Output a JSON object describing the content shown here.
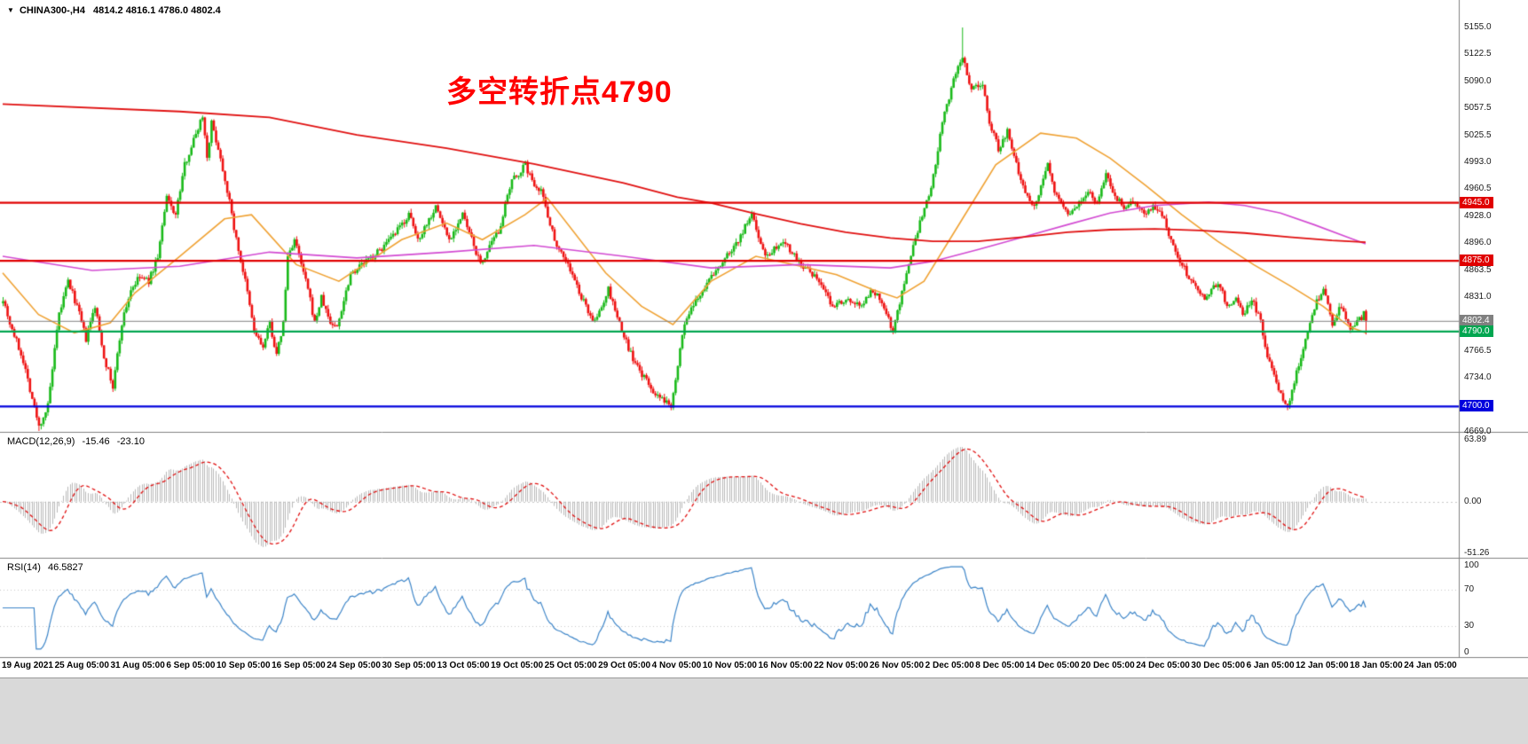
{
  "header": {
    "symbol": "CHINA300-,H4",
    "ohlc": "4814.2 4816.1 4786.0 4802.4"
  },
  "annotation": {
    "text": "多空转折点4790",
    "color": "#ff0000"
  },
  "indicators": {
    "macd": {
      "label": "MACD(12,26,9)",
      "value_main": "-15.46",
      "value_signal": "-23.10",
      "axis_labels": [
        "63.89",
        "0.00",
        "-51.26"
      ],
      "max": 63.89,
      "min": -51.26
    },
    "rsi": {
      "label": "RSI(14)",
      "value": "46.5827",
      "axis_labels": [
        "100",
        "70",
        "30",
        "0"
      ],
      "levels": [
        70,
        30
      ]
    }
  },
  "price_axis": {
    "ticks": [
      "5155.0",
      "5122.5",
      "5090.0",
      "5057.5",
      "5025.5",
      "4993.0",
      "4960.5",
      "4928.0",
      "4896.0",
      "4863.5",
      "4831.0",
      "4766.5",
      "4734.0",
      "4669.0"
    ],
    "levels": [
      {
        "label": "4945.0",
        "price": 4945.0,
        "color": "#e00000",
        "style": "solid",
        "role": "resistance"
      },
      {
        "label": "4875.0",
        "price": 4875.0,
        "color": "#e00000",
        "style": "solid",
        "role": "resistance"
      },
      {
        "label": "4802.4",
        "price": 4802.4,
        "color": "#808080",
        "style": "current",
        "role": "last-price"
      },
      {
        "label": "4790.0",
        "price": 4790.0,
        "color": "#00a650",
        "style": "solid",
        "role": "pivot"
      },
      {
        "label": "4700.0",
        "price": 4700.0,
        "color": "#0000dd",
        "style": "solid",
        "role": "support"
      }
    ]
  },
  "time_axis": {
    "labels": [
      "19 Aug 2021",
      "25 Aug 05:00",
      "31 Aug 05:00",
      "6 Sep 05:00",
      "10 Sep 05:00",
      "16 Sep 05:00",
      "24 Sep 05:00",
      "30 Sep 05:00",
      "13 Oct 05:00",
      "19 Oct 05:00",
      "25 Oct 05:00",
      "29 Oct 05:00",
      "4 Nov 05:00",
      "10 Nov 05:00",
      "16 Nov 05:00",
      "22 Nov 05:00",
      "26 Nov 05:00",
      "2 Dec 05:00",
      "8 Dec 05:00",
      "14 Dec 05:00",
      "20 Dec 05:00",
      "24 Dec 05:00",
      "30 Dec 05:00",
      "6 Jan 05:00",
      "12 Jan 05:00",
      "18 Jan 05:00",
      "24 Jan 05:00"
    ]
  },
  "colors": {
    "up": "#18b918",
    "down": "#ee1111",
    "ma_red": "#e01010",
    "ma_orange": "#efa132",
    "ma_magenta": "#d24ad2",
    "hist": "#b8b8b8",
    "signal": "#e01010",
    "rsi_line": "#3d85c8",
    "separator": "#808080",
    "grid_dot": "#c8c8c8"
  },
  "chart_data": {
    "type": "candlestick",
    "symbol": "CHINA300-",
    "timeframe": "H4",
    "title": "CHINA300-,H4",
    "annotation": "多空转折点4790",
    "visible_range": {
      "start": "19 Aug 2021",
      "end": "24 Jan 05:00"
    },
    "y_axis_range": [
      4669.0,
      5155.0
    ],
    "key_levels": {
      "resistance": [
        4945.0,
        4875.0
      ],
      "pivot": 4790.0,
      "support": 4700.0,
      "last_price": 4802.4
    },
    "ohlc_current": {
      "open": 4814.2,
      "high": 4816.1,
      "low": 4786.0,
      "close": 4802.4
    },
    "bar_count": 609,
    "price_anchors": [
      [
        0,
        4830
      ],
      [
        3,
        4800
      ],
      [
        9,
        4755
      ],
      [
        16,
        4675
      ],
      [
        20,
        4700
      ],
      [
        25,
        4810
      ],
      [
        29,
        4850
      ],
      [
        33,
        4820
      ],
      [
        37,
        4780
      ],
      [
        41,
        4820
      ],
      [
        45,
        4760
      ],
      [
        49,
        4722
      ],
      [
        53,
        4800
      ],
      [
        57,
        4840
      ],
      [
        61,
        4855
      ],
      [
        65,
        4850
      ],
      [
        69,
        4880
      ],
      [
        73,
        4950
      ],
      [
        77,
        4930
      ],
      [
        81,
        4990
      ],
      [
        85,
        5020
      ],
      [
        89,
        5050
      ],
      [
        91,
        5000
      ],
      [
        93,
        5040
      ],
      [
        96,
        5010
      ],
      [
        100,
        4960
      ],
      [
        104,
        4900
      ],
      [
        108,
        4850
      ],
      [
        112,
        4790
      ],
      [
        116,
        4770
      ],
      [
        119,
        4800
      ],
      [
        122,
        4760
      ],
      [
        125,
        4800
      ],
      [
        127,
        4880
      ],
      [
        130,
        4900
      ],
      [
        133,
        4870
      ],
      [
        136,
        4840
      ],
      [
        139,
        4800
      ],
      [
        142,
        4830
      ],
      [
        146,
        4800
      ],
      [
        149,
        4795
      ],
      [
        155,
        4860
      ],
      [
        165,
        4880
      ],
      [
        173,
        4900
      ],
      [
        181,
        4930
      ],
      [
        185,
        4900
      ],
      [
        193,
        4940
      ],
      [
        199,
        4900
      ],
      [
        205,
        4930
      ],
      [
        213,
        4870
      ],
      [
        221,
        4910
      ],
      [
        227,
        4970
      ],
      [
        233,
        4990
      ],
      [
        236,
        4970
      ],
      [
        240,
        4960
      ],
      [
        246,
        4900
      ],
      [
        252,
        4870
      ],
      [
        258,
        4830
      ],
      [
        264,
        4800
      ],
      [
        270,
        4840
      ],
      [
        276,
        4790
      ],
      [
        282,
        4750
      ],
      [
        292,
        4710
      ],
      [
        298,
        4702
      ],
      [
        304,
        4800
      ],
      [
        312,
        4840
      ],
      [
        320,
        4870
      ],
      [
        328,
        4900
      ],
      [
        334,
        4930
      ],
      [
        340,
        4880
      ],
      [
        348,
        4900
      ],
      [
        356,
        4870
      ],
      [
        364,
        4850
      ],
      [
        370,
        4820
      ],
      [
        376,
        4830
      ],
      [
        382,
        4820
      ],
      [
        388,
        4840
      ],
      [
        393,
        4820
      ],
      [
        397,
        4790
      ],
      [
        403,
        4860
      ],
      [
        409,
        4920
      ],
      [
        414,
        4960
      ],
      [
        419,
        5040
      ],
      [
        424,
        5090
      ],
      [
        428,
        5120
      ],
      [
        432,
        5080
      ],
      [
        437,
        5090
      ],
      [
        440,
        5040
      ],
      [
        444,
        5010
      ],
      [
        448,
        5030
      ],
      [
        452,
        4990
      ],
      [
        456,
        4960
      ],
      [
        460,
        4940
      ],
      [
        466,
        4990
      ],
      [
        470,
        4950
      ],
      [
        476,
        4930
      ],
      [
        480,
        4945
      ],
      [
        484,
        4960
      ],
      [
        488,
        4940
      ],
      [
        492,
        4980
      ],
      [
        496,
        4950
      ],
      [
        500,
        4940
      ],
      [
        504,
        4945
      ],
      [
        510,
        4930
      ],
      [
        513,
        4940
      ],
      [
        517,
        4930
      ],
      [
        521,
        4900
      ],
      [
        526,
        4870
      ],
      [
        530,
        4850
      ],
      [
        536,
        4830
      ],
      [
        542,
        4850
      ],
      [
        546,
        4820
      ],
      [
        550,
        4830
      ],
      [
        553,
        4810
      ],
      [
        557,
        4830
      ],
      [
        561,
        4800
      ],
      [
        565,
        4750
      ],
      [
        569,
        4720
      ],
      [
        573,
        4700
      ],
      [
        577,
        4740
      ],
      [
        581,
        4780
      ],
      [
        585,
        4820
      ],
      [
        589,
        4840
      ],
      [
        593,
        4800
      ],
      [
        597,
        4820
      ],
      [
        601,
        4790
      ],
      [
        604,
        4800
      ],
      [
        607,
        4810
      ],
      [
        608,
        4802.4
      ]
    ],
    "spikes": [
      {
        "i": 16,
        "low": 4669
      },
      {
        "i": 428,
        "high": 5155
      },
      {
        "i": 573,
        "low": 4695
      }
    ],
    "overlays": {
      "ma_red_path": [
        [
          0,
          5063
        ],
        [
          79,
          5054
        ],
        [
          119,
          5047
        ],
        [
          158,
          5026
        ],
        [
          198,
          5010
        ],
        [
          237,
          4991
        ],
        [
          277,
          4968
        ],
        [
          301,
          4951
        ],
        [
          316,
          4944
        ],
        [
          336,
          4931
        ],
        [
          356,
          4919
        ],
        [
          376,
          4909
        ],
        [
          396,
          4902
        ],
        [
          415,
          4898
        ],
        [
          435,
          4898
        ],
        [
          455,
          4903
        ],
        [
          475,
          4909
        ],
        [
          494,
          4912
        ],
        [
          514,
          4913
        ],
        [
          534,
          4911
        ],
        [
          554,
          4908
        ],
        [
          574,
          4903
        ],
        [
          593,
          4899
        ],
        [
          608,
          4897
        ]
      ],
      "ma_orange_path": [
        [
          0,
          4860
        ],
        [
          16,
          4810
        ],
        [
          32,
          4788
        ],
        [
          48,
          4800
        ],
        [
          59,
          4836
        ],
        [
          79,
          4880
        ],
        [
          99,
          4925
        ],
        [
          111,
          4930
        ],
        [
          131,
          4870
        ],
        [
          150,
          4850
        ],
        [
          178,
          4900
        ],
        [
          198,
          4920
        ],
        [
          214,
          4900
        ],
        [
          233,
          4930
        ],
        [
          243,
          4950
        ],
        [
          269,
          4860
        ],
        [
          285,
          4820
        ],
        [
          299,
          4798
        ],
        [
          316,
          4850
        ],
        [
          336,
          4880
        ],
        [
          356,
          4868
        ],
        [
          372,
          4858
        ],
        [
          388,
          4840
        ],
        [
          399,
          4830
        ],
        [
          411,
          4850
        ],
        [
          427,
          4920
        ],
        [
          443,
          4990
        ],
        [
          463,
          5028
        ],
        [
          479,
          5022
        ],
        [
          494,
          4998
        ],
        [
          510,
          4965
        ],
        [
          526,
          4930
        ],
        [
          542,
          4898
        ],
        [
          558,
          4870
        ],
        [
          574,
          4845
        ],
        [
          589,
          4820
        ],
        [
          601,
          4795
        ],
        [
          608,
          4788
        ]
      ],
      "ma_magenta_path": [
        [
          0,
          4880
        ],
        [
          40,
          4863
        ],
        [
          79,
          4868
        ],
        [
          119,
          4885
        ],
        [
          158,
          4878
        ],
        [
          198,
          4885
        ],
        [
          237,
          4893
        ],
        [
          277,
          4880
        ],
        [
          316,
          4866
        ],
        [
          356,
          4870
        ],
        [
          396,
          4866
        ],
        [
          415,
          4874
        ],
        [
          435,
          4888
        ],
        [
          455,
          4903
        ],
        [
          475,
          4918
        ],
        [
          494,
          4932
        ],
        [
          514,
          4941
        ],
        [
          538,
          4945
        ],
        [
          554,
          4941
        ],
        [
          570,
          4932
        ],
        [
          585,
          4918
        ],
        [
          601,
          4902
        ],
        [
          608,
          4895
        ]
      ]
    }
  }
}
